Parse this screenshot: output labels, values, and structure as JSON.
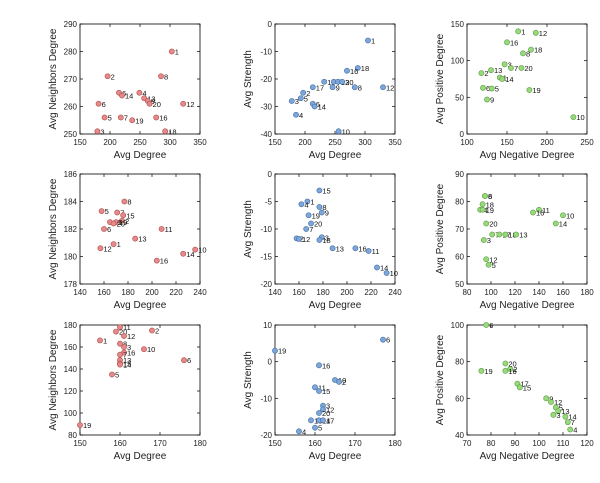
{
  "colors": {
    "red": "#e58a8a",
    "blue": "#7fa6d8",
    "green": "#96da7a",
    "stroke_red": "#b44a4a",
    "stroke_blue": "#3f6ea8",
    "stroke_green": "#5f9b45"
  },
  "chart_data": [
    {
      "type": "scatter",
      "color": "red",
      "xlabel": "Avg Degree",
      "ylabel": "Avg Neighbors Degree",
      "xlim": [
        150,
        350
      ],
      "ylim": [
        250,
        290
      ],
      "xticks": [
        150,
        200,
        250,
        300,
        350
      ],
      "yticks": [
        250,
        260,
        270,
        280,
        290
      ],
      "points": [
        {
          "x": 303,
          "y": 280,
          "label": "1"
        },
        {
          "x": 196,
          "y": 271,
          "label": "2"
        },
        {
          "x": 285,
          "y": 271,
          "label": "8"
        },
        {
          "x": 249,
          "y": 265,
          "label": "4"
        },
        {
          "x": 215,
          "y": 265,
          "label": "6"
        },
        {
          "x": 220,
          "y": 264,
          "label": "14"
        },
        {
          "x": 257,
          "y": 263,
          "label": "13"
        },
        {
          "x": 263,
          "y": 262,
          "label": "9"
        },
        {
          "x": 266,
          "y": 261,
          "label": "20"
        },
        {
          "x": 181,
          "y": 261,
          "label": "6"
        },
        {
          "x": 322,
          "y": 261,
          "label": "12"
        },
        {
          "x": 218,
          "y": 256,
          "label": "7"
        },
        {
          "x": 191,
          "y": 256,
          "label": "5"
        },
        {
          "x": 277,
          "y": 256,
          "label": "16"
        },
        {
          "x": 237,
          "y": 255,
          "label": "19"
        },
        {
          "x": 179,
          "y": 251,
          "label": "3"
        },
        {
          "x": 292,
          "y": 251,
          "label": "18"
        }
      ]
    },
    {
      "type": "scatter",
      "color": "blue",
      "xlabel": "Avg Degree",
      "ylabel": "Avg Strength",
      "xlim": [
        150,
        350
      ],
      "ylim": [
        -40,
        0
      ],
      "xticks": [
        150,
        200,
        250,
        300,
        350
      ],
      "yticks": [
        -40,
        -30,
        -20,
        -10,
        0
      ],
      "points": [
        {
          "x": 305,
          "y": -6,
          "label": "1"
        },
        {
          "x": 288,
          "y": -16,
          "label": "18"
        },
        {
          "x": 270,
          "y": -17,
          "label": "16"
        },
        {
          "x": 232,
          "y": -21,
          "label": "19"
        },
        {
          "x": 248,
          "y": -21,
          "label": "7"
        },
        {
          "x": 255,
          "y": -21,
          "label": "13"
        },
        {
          "x": 262,
          "y": -21,
          "label": "20"
        },
        {
          "x": 246,
          "y": -23,
          "label": "9"
        },
        {
          "x": 330,
          "y": -23,
          "label": "12"
        },
        {
          "x": 213,
          "y": -23,
          "label": "17"
        },
        {
          "x": 283,
          "y": -23,
          "label": "8"
        },
        {
          "x": 197,
          "y": -25,
          "label": "2"
        },
        {
          "x": 193,
          "y": -27,
          "label": "5"
        },
        {
          "x": 178,
          "y": -28,
          "label": "3"
        },
        {
          "x": 213,
          "y": -29,
          "label": "6"
        },
        {
          "x": 216,
          "y": -30,
          "label": "14"
        },
        {
          "x": 185,
          "y": -33,
          "label": "4"
        },
        {
          "x": 256,
          "y": -39,
          "label": "10"
        }
      ]
    },
    {
      "type": "scatter",
      "color": "green",
      "xlabel": "Avg Negative Degree",
      "ylabel": "Avg Positive Degree",
      "xlim": [
        100,
        250
      ],
      "ylim": [
        0,
        150
      ],
      "xticks": [
        100,
        150,
        200,
        250
      ],
      "yticks": [
        0,
        50,
        100,
        150
      ],
      "points": [
        {
          "x": 164,
          "y": 140,
          "label": "1"
        },
        {
          "x": 186,
          "y": 138,
          "label": "12"
        },
        {
          "x": 150,
          "y": 125,
          "label": "16"
        },
        {
          "x": 180,
          "y": 115,
          "label": "18"
        },
        {
          "x": 170,
          "y": 110,
          "label": "8"
        },
        {
          "x": 147,
          "y": 95,
          "label": "3"
        },
        {
          "x": 155,
          "y": 90,
          "label": "7"
        },
        {
          "x": 130,
          "y": 87,
          "label": "13"
        },
        {
          "x": 168,
          "y": 90,
          "label": "20"
        },
        {
          "x": 118,
          "y": 83,
          "label": "2"
        },
        {
          "x": 141,
          "y": 77,
          "label": "1"
        },
        {
          "x": 144,
          "y": 75,
          "label": "14"
        },
        {
          "x": 120,
          "y": 63,
          "label": "6"
        },
        {
          "x": 131,
          "y": 62,
          "label": "5"
        },
        {
          "x": 178,
          "y": 60,
          "label": "19"
        },
        {
          "x": 125,
          "y": 47,
          "label": "9"
        },
        {
          "x": 233,
          "y": 23,
          "label": "10"
        }
      ]
    },
    {
      "type": "scatter",
      "color": "red",
      "xlabel": "Avg Degree",
      "ylabel": "Avg Neighbors Degree",
      "xlim": [
        140,
        240
      ],
      "ylim": [
        178,
        186
      ],
      "xticks": [
        140,
        160,
        180,
        200,
        220,
        240
      ],
      "yticks": [
        178,
        180,
        182,
        184,
        186
      ],
      "points": [
        {
          "x": 177,
          "y": 184,
          "label": "8"
        },
        {
          "x": 158,
          "y": 183.3,
          "label": "5"
        },
        {
          "x": 171,
          "y": 183.2,
          "label": "7"
        },
        {
          "x": 176,
          "y": 183,
          "label": "15"
        },
        {
          "x": 175,
          "y": 182.6,
          "label": "2"
        },
        {
          "x": 165,
          "y": 182.5,
          "label": "18"
        },
        {
          "x": 170,
          "y": 182.5,
          "label": "19"
        },
        {
          "x": 168,
          "y": 182.4,
          "label": "20"
        },
        {
          "x": 160,
          "y": 182,
          "label": "6"
        },
        {
          "x": 208,
          "y": 182,
          "label": "11"
        },
        {
          "x": 186,
          "y": 181.3,
          "label": "13"
        },
        {
          "x": 168,
          "y": 180.9,
          "label": "1"
        },
        {
          "x": 157,
          "y": 180.6,
          "label": "12"
        },
        {
          "x": 236,
          "y": 180.5,
          "label": "10"
        },
        {
          "x": 226,
          "y": 180.2,
          "label": "14"
        },
        {
          "x": 204,
          "y": 179.7,
          "label": "16"
        }
      ]
    },
    {
      "type": "scatter",
      "color": "blue",
      "xlabel": "Avg Degree",
      "ylabel": "Avg Strength",
      "xlim": [
        140,
        240
      ],
      "ylim": [
        -20,
        0
      ],
      "xticks": [
        140,
        160,
        180,
        200,
        220,
        240
      ],
      "yticks": [
        -20,
        -15,
        -10,
        -5,
        0
      ],
      "points": [
        {
          "x": 177,
          "y": -3,
          "label": "15"
        },
        {
          "x": 167,
          "y": -5,
          "label": "1"
        },
        {
          "x": 162,
          "y": -5.5,
          "label": "4"
        },
        {
          "x": 177,
          "y": -6,
          "label": "8"
        },
        {
          "x": 179,
          "y": -7,
          "label": "9"
        },
        {
          "x": 168,
          "y": -7.5,
          "label": "19"
        },
        {
          "x": 170,
          "y": -9,
          "label": "20"
        },
        {
          "x": 166,
          "y": -10,
          "label": "7"
        },
        {
          "x": 179,
          "y": -11.5,
          "label": "3"
        },
        {
          "x": 158,
          "y": -11.7,
          "label": "2"
        },
        {
          "x": 160,
          "y": -11.8,
          "label": "12"
        },
        {
          "x": 177,
          "y": -12,
          "label": "18"
        },
        {
          "x": 188,
          "y": -13.5,
          "label": "13"
        },
        {
          "x": 207,
          "y": -13.5,
          "label": "16"
        },
        {
          "x": 218,
          "y": -14,
          "label": "11"
        },
        {
          "x": 225,
          "y": -17,
          "label": "14"
        },
        {
          "x": 233,
          "y": -18,
          "label": "10"
        }
      ]
    },
    {
      "type": "scatter",
      "color": "green",
      "xlabel": "Avg Negative Degree",
      "ylabel": "Avg Positive Degree",
      "xlim": [
        80,
        180
      ],
      "ylim": [
        50,
        90
      ],
      "xticks": [
        80,
        100,
        120,
        140,
        160,
        180
      ],
      "yticks": [
        50,
        60,
        70,
        80,
        90
      ],
      "points": [
        {
          "x": 95,
          "y": 82,
          "label": "6"
        },
        {
          "x": 95,
          "y": 82,
          "label": "8"
        },
        {
          "x": 93,
          "y": 79,
          "label": "18"
        },
        {
          "x": 91,
          "y": 77,
          "label": "4"
        },
        {
          "x": 93,
          "y": 77,
          "label": "19"
        },
        {
          "x": 140,
          "y": 77,
          "label": "11"
        },
        {
          "x": 135,
          "y": 76,
          "label": "16"
        },
        {
          "x": 160,
          "y": 75,
          "label": "10"
        },
        {
          "x": 154,
          "y": 72,
          "label": "14"
        },
        {
          "x": 96,
          "y": 72,
          "label": "20"
        },
        {
          "x": 101,
          "y": 68,
          "label": "7"
        },
        {
          "x": 107,
          "y": 68,
          "label": "17"
        },
        {
          "x": 112,
          "y": 68,
          "label": "18"
        },
        {
          "x": 121,
          "y": 68,
          "label": "13"
        },
        {
          "x": 94,
          "y": 66,
          "label": "3"
        },
        {
          "x": 96,
          "y": 59,
          "label": "12"
        },
        {
          "x": 98,
          "y": 57,
          "label": "5"
        }
      ]
    },
    {
      "type": "scatter",
      "color": "red",
      "xlabel": "Avg Degree",
      "ylabel": "Avg Neighbors Degree",
      "xlim": [
        150,
        180
      ],
      "ylim": [
        80,
        180
      ],
      "xticks": [
        150,
        160,
        170,
        180
      ],
      "yticks": [
        80,
        100,
        120,
        140,
        160,
        180
      ],
      "points": [
        {
          "x": 160,
          "y": 178,
          "label": "11"
        },
        {
          "x": 168,
          "y": 175,
          "label": "2"
        },
        {
          "x": 159,
          "y": 174,
          "label": "20"
        },
        {
          "x": 161,
          "y": 170,
          "label": "12"
        },
        {
          "x": 155,
          "y": 166,
          "label": "1"
        },
        {
          "x": 160,
          "y": 163,
          "label": "8"
        },
        {
          "x": 161,
          "y": 160,
          "label": "3"
        },
        {
          "x": 166,
          "y": 158,
          "label": "10"
        },
        {
          "x": 161,
          "y": 155,
          "label": "16"
        },
        {
          "x": 160,
          "y": 153,
          "label": "7"
        },
        {
          "x": 160,
          "y": 148,
          "label": "13"
        },
        {
          "x": 160,
          "y": 145,
          "label": "15"
        },
        {
          "x": 160,
          "y": 144,
          "label": "14"
        },
        {
          "x": 176,
          "y": 148,
          "label": "6"
        },
        {
          "x": 158,
          "y": 135,
          "label": "5"
        },
        {
          "x": 150,
          "y": 89,
          "label": "19"
        }
      ]
    },
    {
      "type": "scatter",
      "color": "blue",
      "xlabel": "Avg Degree",
      "ylabel": "Avg Strength",
      "xlim": [
        150,
        180
      ],
      "ylim": [
        -20,
        10
      ],
      "xticks": [
        150,
        160,
        170,
        180
      ],
      "yticks": [
        -20,
        -10,
        0,
        10
      ],
      "points": [
        {
          "x": 177,
          "y": 6,
          "label": "6"
        },
        {
          "x": 150,
          "y": 3,
          "label": "19"
        },
        {
          "x": 161,
          "y": -1,
          "label": "16"
        },
        {
          "x": 165,
          "y": -5,
          "label": "10"
        },
        {
          "x": 166,
          "y": -5.5,
          "label": "2"
        },
        {
          "x": 160,
          "y": -7,
          "label": "11"
        },
        {
          "x": 161,
          "y": -8,
          "label": "15"
        },
        {
          "x": 162,
          "y": -12,
          "label": "3"
        },
        {
          "x": 162,
          "y": -13,
          "label": "12"
        },
        {
          "x": 161,
          "y": -14,
          "label": "20"
        },
        {
          "x": 159,
          "y": -16,
          "label": "13"
        },
        {
          "x": 161,
          "y": -16,
          "label": "14"
        },
        {
          "x": 162,
          "y": -16,
          "label": "17"
        },
        {
          "x": 160,
          "y": -18,
          "label": "5"
        },
        {
          "x": 156,
          "y": -19,
          "label": "4"
        }
      ]
    },
    {
      "type": "scatter",
      "color": "green",
      "xlabel": "Avg Negative Degree",
      "ylabel": "Avg Positive Degree",
      "xlim": [
        70,
        120
      ],
      "ylim": [
        40,
        100
      ],
      "xticks": [
        70,
        80,
        90,
        100,
        110,
        120
      ],
      "yticks": [
        40,
        60,
        80,
        100
      ],
      "points": [
        {
          "x": 78,
          "y": 100,
          "label": "6"
        },
        {
          "x": 86,
          "y": 79,
          "label": "20"
        },
        {
          "x": 88,
          "y": 76,
          "label": "2"
        },
        {
          "x": 86,
          "y": 75,
          "label": "16"
        },
        {
          "x": 76,
          "y": 75,
          "label": "19"
        },
        {
          "x": 91,
          "y": 68,
          "label": "17"
        },
        {
          "x": 92,
          "y": 66,
          "label": "15"
        },
        {
          "x": 103,
          "y": 60,
          "label": "9"
        },
        {
          "x": 105,
          "y": 58,
          "label": "12"
        },
        {
          "x": 107,
          "y": 55,
          "label": "5"
        },
        {
          "x": 108,
          "y": 53,
          "label": "13"
        },
        {
          "x": 106,
          "y": 51,
          "label": "3"
        },
        {
          "x": 111,
          "y": 50,
          "label": "14"
        },
        {
          "x": 112,
          "y": 47,
          "label": "7"
        },
        {
          "x": 113,
          "y": 43,
          "label": "4"
        }
      ]
    }
  ]
}
